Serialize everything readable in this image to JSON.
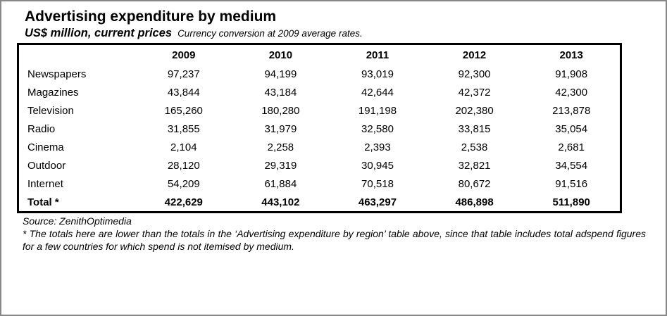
{
  "header": {
    "title": "Advertising expenditure by medium",
    "subtitle": "US$ million, current prices",
    "subtitle_note": "Currency conversion at 2009 average rates."
  },
  "table": {
    "corner_label": "",
    "year_headers": [
      "2009",
      "2010",
      "2011",
      "2012",
      "2013"
    ],
    "rows": [
      {
        "label": "Newspapers",
        "values": [
          "97,237",
          "94,199",
          "93,019",
          "92,300",
          "91,908"
        ]
      },
      {
        "label": "Magazines",
        "values": [
          "43,844",
          "43,184",
          "42,644",
          "42,372",
          "42,300"
        ]
      },
      {
        "label": "Television",
        "values": [
          "165,260",
          "180,280",
          "191,198",
          "202,380",
          "213,878"
        ]
      },
      {
        "label": "Radio",
        "values": [
          "31,855",
          "31,979",
          "32,580",
          "33,815",
          "35,054"
        ]
      },
      {
        "label": "Cinema",
        "values": [
          "2,104",
          "2,258",
          "2,393",
          "2,538",
          "2,681"
        ]
      },
      {
        "label": "Outdoor",
        "values": [
          "28,120",
          "29,319",
          "30,945",
          "32,821",
          "34,554"
        ]
      },
      {
        "label": "Internet",
        "values": [
          "54,209",
          "61,884",
          "70,518",
          "80,672",
          "91,516"
        ]
      }
    ],
    "total_row": {
      "label": "Total *",
      "values": [
        "422,629",
        "443,102",
        "463,297",
        "486,898",
        "511,890"
      ]
    }
  },
  "footer": {
    "source": "Source: ZenithOptimedia",
    "footnote": "* The totals here are lower than the totals in the ‘Advertising expenditure by region’ table above, since that table includes total adspend figures for a few countries for which spend is not itemised by medium."
  },
  "colors": {
    "text": "#000000",
    "table_border": "#000000",
    "outer_frame": "#888888",
    "background": "#ffffff"
  },
  "chart_data": {
    "type": "table",
    "title": "Advertising expenditure by medium",
    "subtitle": "US$ million, current prices",
    "note": "Currency conversion at 2009 average rates.",
    "categories": [
      2009,
      2010,
      2011,
      2012,
      2013
    ],
    "series": [
      {
        "name": "Newspapers",
        "values": [
          97237,
          94199,
          93019,
          92300,
          91908
        ]
      },
      {
        "name": "Magazines",
        "values": [
          43844,
          43184,
          42644,
          42372,
          42300
        ]
      },
      {
        "name": "Television",
        "values": [
          165260,
          180280,
          191198,
          202380,
          213878
        ]
      },
      {
        "name": "Radio",
        "values": [
          31855,
          31979,
          32580,
          33815,
          35054
        ]
      },
      {
        "name": "Cinema",
        "values": [
          2104,
          2258,
          2393,
          2538,
          2681
        ]
      },
      {
        "name": "Outdoor",
        "values": [
          28120,
          29319,
          30945,
          32821,
          34554
        ]
      },
      {
        "name": "Internet",
        "values": [
          54209,
          61884,
          70518,
          80672,
          91516
        ]
      },
      {
        "name": "Total *",
        "values": [
          422629,
          443102,
          463297,
          486898,
          511890
        ]
      }
    ],
    "source": "ZenithOptimedia",
    "footnote": "* The totals here are lower than the totals in the ‘Advertising expenditure by region’ table above, since that table includes total adspend figures for a few countries for which spend is not itemised by medium."
  }
}
